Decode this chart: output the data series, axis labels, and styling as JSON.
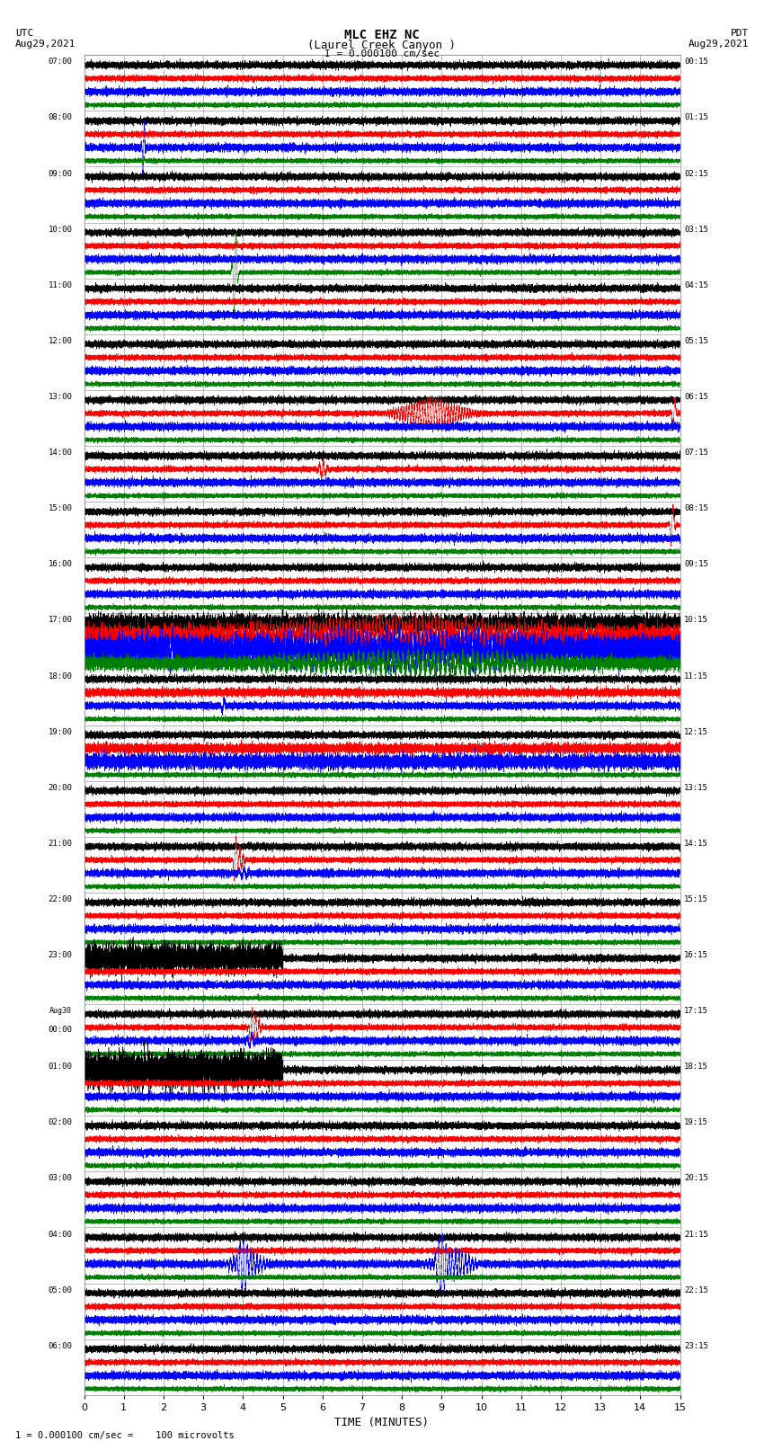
{
  "title_line1": "MLC EHZ NC",
  "title_line2": "(Laurel Creek Canyon )",
  "scale_label": "I = 0.000100 cm/sec",
  "bottom_label": "1 = 0.000100 cm/sec =    100 microvolts",
  "utc_label": "UTC\nAug29,2021",
  "pdt_label": "PDT\nAug29,2021",
  "xlabel": "TIME (MINUTES)",
  "left_times": [
    "07:00",
    "08:00",
    "09:00",
    "10:00",
    "11:00",
    "12:00",
    "13:00",
    "14:00",
    "15:00",
    "16:00",
    "17:00",
    "18:00",
    "19:00",
    "20:00",
    "21:00",
    "22:00",
    "23:00",
    "Aug30\n00:00",
    "01:00",
    "02:00",
    "03:00",
    "04:00",
    "05:00",
    "06:00"
  ],
  "right_times": [
    "00:15",
    "01:15",
    "02:15",
    "03:15",
    "04:15",
    "05:15",
    "06:15",
    "07:15",
    "08:15",
    "09:15",
    "10:15",
    "11:15",
    "12:15",
    "13:15",
    "14:15",
    "15:15",
    "16:15",
    "17:15",
    "18:15",
    "19:15",
    "20:15",
    "21:15",
    "22:15",
    "23:15"
  ],
  "n_rows": 24,
  "n_minutes": 15,
  "bg_color": "#ffffff",
  "trace_order": [
    "black",
    "red",
    "blue",
    "green"
  ],
  "seed": 42,
  "fig_width": 8.5,
  "fig_height": 16.13,
  "dpi": 100
}
